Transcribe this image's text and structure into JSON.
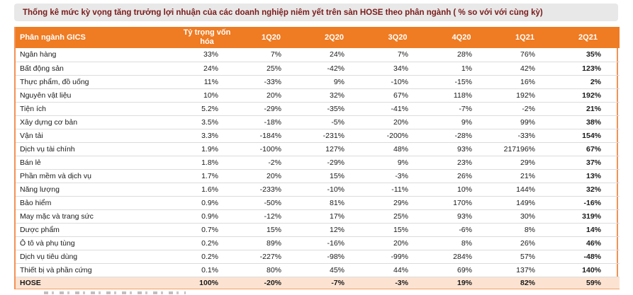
{
  "title": "Thống kê mức kỳ vọng tăng trưởng lợi nhuận của các doanh nghiệp niêm yết trên sàn HOSE theo phân ngành ( % so với với cùng kỳ)",
  "colors": {
    "accent_orange": "#EF7B22",
    "table_border_orange": "#F49155",
    "total_row_bg": "#FCE3D1",
    "title_bar_bg": "#E8E8E8",
    "title_text": "#7A1B1B",
    "row_divider": "#DCDCDC"
  },
  "chart_data": {
    "type": "table",
    "title": "Thống kê mức kỳ vọng tăng trưởng lợi nhuận của các doanh nghiệp niêm yết trên sàn HOSE theo phân ngành ( % so với với cùng kỳ)",
    "columns": [
      "Phân ngành GICS",
      "Tỷ trọng vốn hóa",
      "1Q20",
      "2Q20",
      "3Q20",
      "4Q20",
      "1Q21",
      "2Q21"
    ],
    "rows": [
      {
        "name": "Ngân hàng",
        "values": [
          "33%",
          "7%",
          "24%",
          "7%",
          "28%",
          "76%",
          "35%"
        ]
      },
      {
        "name": "Bất động sản",
        "values": [
          "24%",
          "25%",
          "-42%",
          "34%",
          "1%",
          "42%",
          "123%"
        ]
      },
      {
        "name": "Thực phẩm, đồ uống",
        "values": [
          "11%",
          "-33%",
          "9%",
          "-10%",
          "-15%",
          "16%",
          "2%"
        ]
      },
      {
        "name": "Nguyên vật liệu",
        "values": [
          "10%",
          "20%",
          "32%",
          "67%",
          "118%",
          "192%",
          "192%"
        ]
      },
      {
        "name": "Tiện ích",
        "values": [
          "5.2%",
          "-29%",
          "-35%",
          "-41%",
          "-7%",
          "-2%",
          "21%"
        ]
      },
      {
        "name": "Xây dựng cơ bản",
        "values": [
          "3.5%",
          "-18%",
          "-5%",
          "20%",
          "9%",
          "99%",
          "38%"
        ]
      },
      {
        "name": "Vận tải",
        "values": [
          "3.3%",
          "-184%",
          "-231%",
          "-200%",
          "-28%",
          "-33%",
          "154%"
        ]
      },
      {
        "name": "Dịch vụ tài chính",
        "values": [
          "1.9%",
          "-100%",
          "127%",
          "48%",
          "93%",
          "217196%",
          "67%"
        ]
      },
      {
        "name": "Bán lẻ",
        "values": [
          "1.8%",
          "-2%",
          "-29%",
          "9%",
          "23%",
          "29%",
          "37%"
        ]
      },
      {
        "name": "Phần mềm và dịch vụ",
        "values": [
          "1.7%",
          "20%",
          "15%",
          "-3%",
          "26%",
          "21%",
          "13%"
        ]
      },
      {
        "name": "Năng lượng",
        "values": [
          "1.6%",
          "-233%",
          "-10%",
          "-11%",
          "10%",
          "144%",
          "32%"
        ]
      },
      {
        "name": "Bảo hiểm",
        "values": [
          "0.9%",
          "-50%",
          "81%",
          "29%",
          "170%",
          "149%",
          "-16%"
        ]
      },
      {
        "name": "May mặc và trang sức",
        "values": [
          "0.9%",
          "-12%",
          "17%",
          "25%",
          "93%",
          "30%",
          "319%"
        ]
      },
      {
        "name": "Dược phẩm",
        "values": [
          "0.7%",
          "15%",
          "12%",
          "15%",
          "-6%",
          "8%",
          "14%"
        ]
      },
      {
        "name": "Ô tô và phụ tùng",
        "values": [
          "0.2%",
          "89%",
          "-16%",
          "20%",
          "8%",
          "26%",
          "46%"
        ]
      },
      {
        "name": "Dịch vụ tiêu dùng",
        "values": [
          "0.2%",
          "-227%",
          "-98%",
          "-99%",
          "284%",
          "57%",
          "-48%"
        ]
      },
      {
        "name": "Thiết bị và phần cứng",
        "values": [
          "0.1%",
          "80%",
          "45%",
          "44%",
          "69%",
          "137%",
          "140%"
        ]
      },
      {
        "name": "HOSE",
        "total": true,
        "values": [
          "100%",
          "-20%",
          "-7%",
          "-3%",
          "19%",
          "82%",
          "59%"
        ]
      }
    ]
  }
}
